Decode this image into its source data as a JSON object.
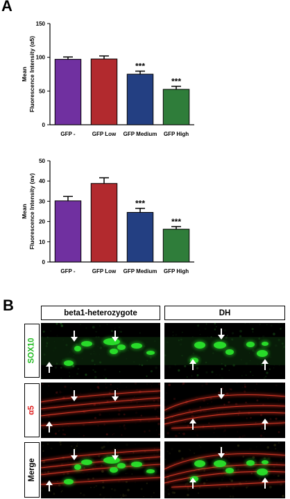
{
  "panel_a_label": "A",
  "panel_b_label": "B",
  "chart_data": [
    {
      "type": "bar",
      "categories": [
        "GFP -",
        "GFP Low",
        "GFP Medium",
        "GFP High"
      ],
      "values": [
        97,
        97.5,
        75,
        52.5
      ],
      "errors": [
        3.5,
        4.5,
        4.5,
        4.5
      ],
      "significance": [
        "",
        "",
        "***",
        "***"
      ],
      "colors": [
        "#7030a0",
        "#b22a2e",
        "#233f82",
        "#2f7d3a"
      ],
      "ylabel_line1": "Mean",
      "ylabel_line2": "Fluorescence Intensity (α5)",
      "xlabel": "",
      "ylim": [
        0,
        150
      ],
      "yticks": [
        0,
        50,
        100,
        150
      ]
    },
    {
      "type": "bar",
      "categories": [
        "GFP -",
        "GFP Low",
        "GFP Medium",
        "GFP High"
      ],
      "values": [
        30.2,
        38.8,
        24.5,
        16.2
      ],
      "errors": [
        2.2,
        2.8,
        2.0,
        1.3
      ],
      "significance": [
        "",
        "",
        "***",
        "***"
      ],
      "colors": [
        "#7030a0",
        "#b22a2e",
        "#233f82",
        "#2f7d3a"
      ],
      "ylabel_line1": "Mean",
      "ylabel_line2": "Fluorescence Intensity (αv)",
      "xlabel": "",
      "ylim": [
        0,
        50
      ],
      "yticks": [
        0,
        10,
        20,
        30,
        40,
        50
      ]
    }
  ],
  "panel_b": {
    "columns": [
      "beta1-heterozygote",
      "DH"
    ],
    "rows": [
      {
        "label": "SOX10",
        "label_color": "#22bb22"
      },
      {
        "label": "α5",
        "label_color": "#e02020"
      },
      {
        "label": "Merge",
        "label_color": "#000000"
      }
    ]
  }
}
